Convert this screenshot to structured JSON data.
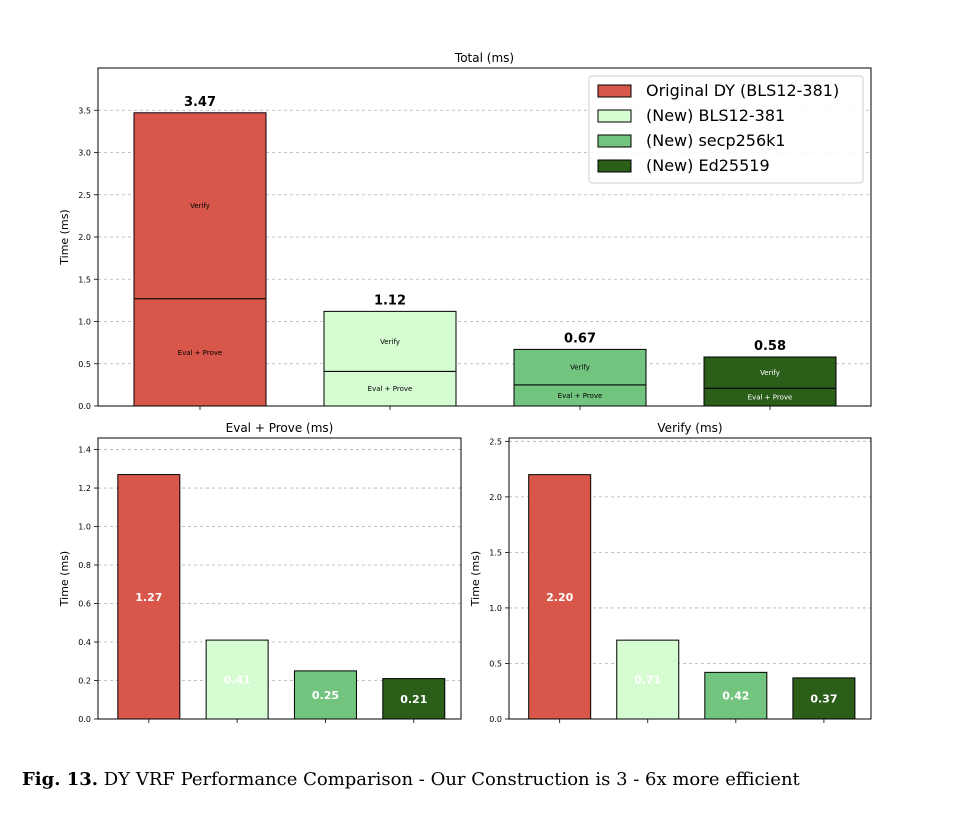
{
  "colors": {
    "original_dy": "#d9574a",
    "new_bls": "#d6fcd2",
    "new_secp": "#72c47f",
    "new_ed": "#2a5e19"
  },
  "chart_data": [
    {
      "type": "bar",
      "stacked": true,
      "title": "Total (ms)",
      "ylabel": "Time (ms)",
      "ylim": [
        0,
        4.0
      ],
      "yticks": [
        "0.0",
        "0.5",
        "1.0",
        "1.5",
        "2.0",
        "2.5",
        "3.0",
        "3.5"
      ],
      "grid": true,
      "legend_placement": "top-right",
      "legend": [
        "Original DY (BLS12-381)",
        "(New) BLS12-381",
        "(New) secp256k1",
        "(New) Ed25519"
      ],
      "segments": [
        "Eval + Prove",
        "Verify"
      ],
      "bars": [
        {
          "eval_prove": 1.27,
          "verify": 2.2,
          "total_label": "3.47"
        },
        {
          "eval_prove": 0.41,
          "verify": 0.71,
          "total_label": "1.12"
        },
        {
          "eval_prove": 0.25,
          "verify": 0.42,
          "total_label": "0.67"
        },
        {
          "eval_prove": 0.21,
          "verify": 0.37,
          "total_label": "0.58"
        }
      ]
    },
    {
      "type": "bar",
      "title": "Eval + Prove (ms)",
      "ylabel": "Time (ms)",
      "ylim": [
        0,
        1.46
      ],
      "yticks": [
        "0.0",
        "0.2",
        "0.4",
        "0.6",
        "0.8",
        "1.0",
        "1.2",
        "1.4"
      ],
      "grid": true,
      "values": [
        1.27,
        0.41,
        0.25,
        0.21
      ],
      "labels": [
        "1.27",
        "0.41",
        "0.25",
        "0.21"
      ]
    },
    {
      "type": "bar",
      "title": "Verify (ms)",
      "ylabel": "Time (ms)",
      "ylim": [
        0,
        2.53
      ],
      "yticks": [
        "0.0",
        "0.5",
        "1.0",
        "1.5",
        "2.0",
        "2.5"
      ],
      "grid": true,
      "values": [
        2.2,
        0.71,
        0.42,
        0.37
      ],
      "labels": [
        "2.20",
        "0.71",
        "0.42",
        "0.37"
      ]
    }
  ],
  "caption": {
    "label": "Fig. 13.",
    "text": " DY VRF Performance Comparison - Our Construction is 3 - 6x more efficient"
  }
}
